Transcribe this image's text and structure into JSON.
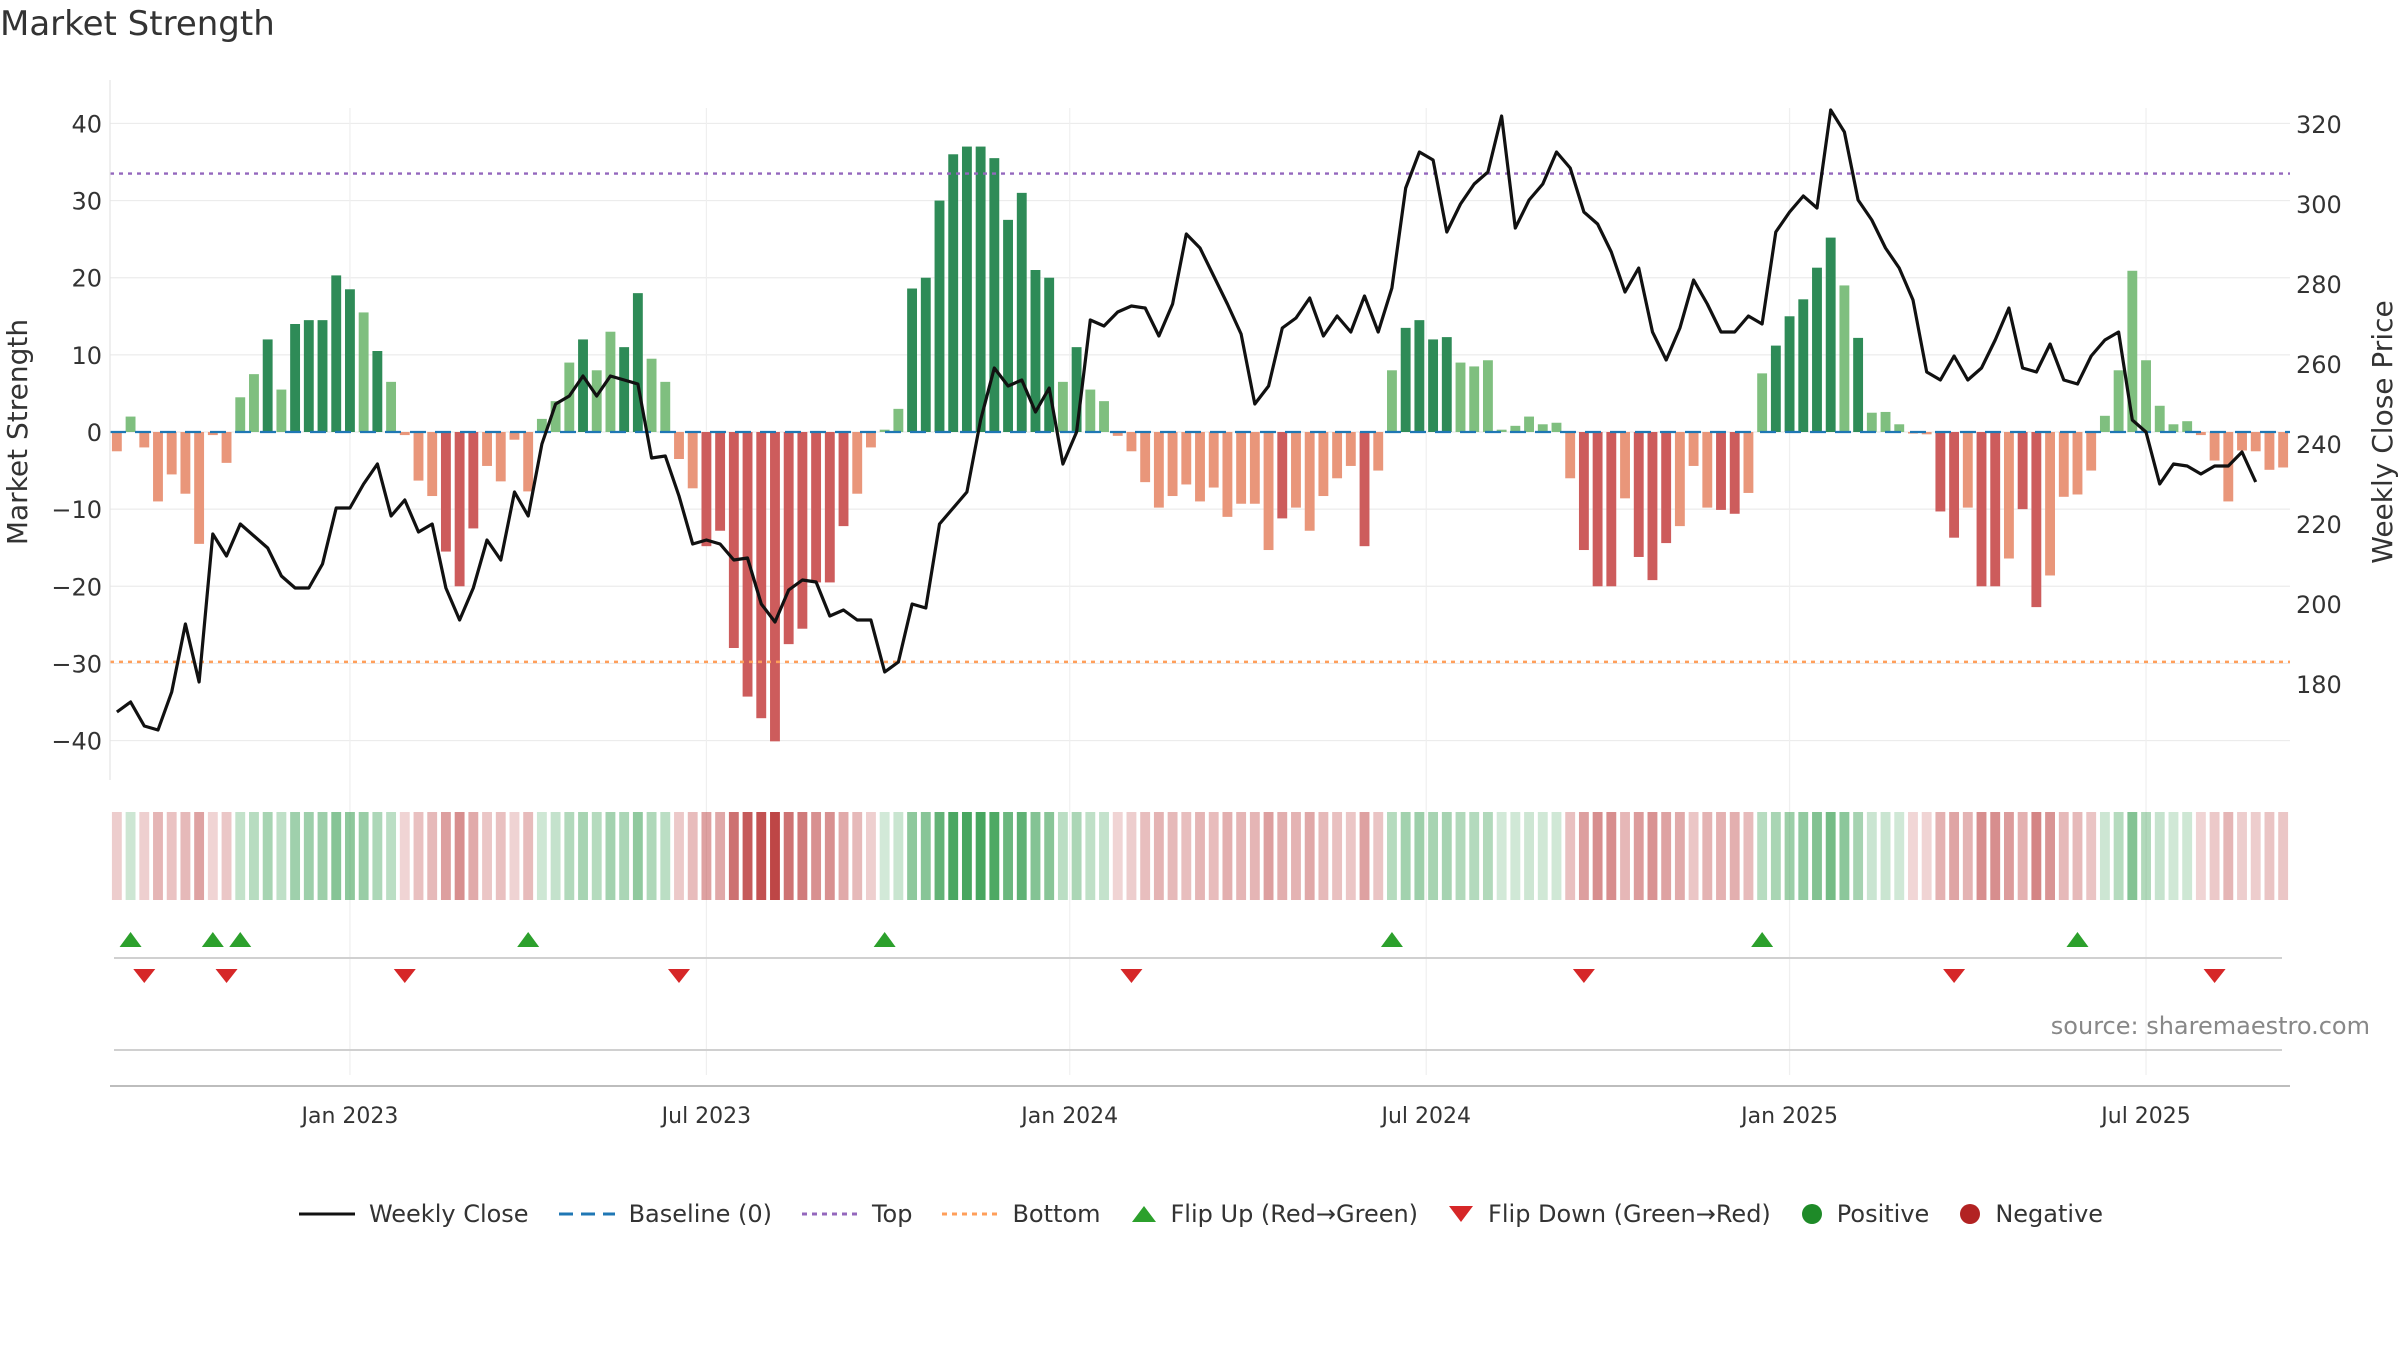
{
  "chart_data": {
    "type": "bar+line",
    "title": "Market Strength",
    "ylabel_left": "Market Strength",
    "ylabel_right": "Weekly Close Price",
    "ylim_left": [
      -42,
      42
    ],
    "ylim_right": [
      162,
      324
    ],
    "yticks_left": [
      40,
      30,
      20,
      10,
      0,
      -10,
      -20,
      -30,
      -40
    ],
    "yticks_left_labels": [
      "40",
      "30",
      "20",
      "10",
      "0",
      "−10",
      "−20",
      "−30",
      "−40"
    ],
    "yticks_right": [
      320,
      300,
      280,
      260,
      240,
      220,
      200,
      180
    ],
    "xticks": [
      {
        "week": 17.5,
        "label": "Jan 2023"
      },
      {
        "week": 43.5,
        "label": "Jul 2023"
      },
      {
        "week": 70,
        "label": "Jan 2024"
      },
      {
        "week": 96,
        "label": "Jul 2024"
      },
      {
        "week": 122.5,
        "label": "Jan 2025"
      },
      {
        "week": 148.5,
        "label": "Jul 2025"
      }
    ],
    "top_level": 33.5,
    "bottom_level": -29.8,
    "strength": [
      -2.5,
      2,
      -2,
      -9,
      -5.5,
      -8,
      -14.5,
      -0.4,
      -4,
      4.5,
      7.5,
      12,
      5.5,
      14,
      14.5,
      14.5,
      20.3,
      18.5,
      15.5,
      10.5,
      6.5,
      -0.4,
      -6.3,
      -8.3,
      -15.5,
      -20,
      -12.5,
      -4.4,
      -6.4,
      -1,
      -7.7,
      1.7,
      4,
      9,
      12,
      8,
      13,
      11,
      18,
      9.5,
      6.5,
      -3.5,
      -7.3,
      -14.8,
      -12.8,
      -28,
      -34.3,
      -37.1,
      -40.1,
      -27.5,
      -25.5,
      -19.5,
      -19.5,
      -12.2,
      -8,
      -2,
      0.3,
      3,
      18.6,
      20,
      30,
      36,
      37,
      37,
      35.5,
      27.5,
      31,
      21,
      20,
      6.5,
      11,
      5.5,
      4,
      -0.5,
      -2.5,
      -6.5,
      -9.8,
      -8.3,
      -6.8,
      -9,
      -7.2,
      -11,
      -9.3,
      -9.3,
      -15.3,
      -11.2,
      -9.8,
      -12.8,
      -8.3,
      -6,
      -4.4,
      -14.8,
      -5,
      8,
      13.5,
      14.5,
      12,
      12.3,
      9,
      8.5,
      9.3,
      0.3,
      0.8,
      2,
      1,
      1.2,
      -6,
      -15.3,
      -20,
      -20,
      -8.6,
      -16.2,
      -19.2,
      -14.4,
      -12.2,
      -4.4,
      -9.8,
      -10.1,
      -10.6,
      -7.9,
      7.6,
      11.2,
      15,
      17.2,
      21.3,
      25.2,
      19,
      12.2,
      2.5,
      2.6,
      1,
      -0.2,
      -0.3,
      -10.3,
      -13.7,
      -9.8,
      -20,
      -20,
      -16.4,
      -10,
      -22.7,
      -18.6,
      -8.4,
      -8.1,
      -5,
      2.1,
      8,
      20.9,
      9.3,
      3.4,
      1,
      1.4,
      -0.4,
      -3.7,
      -9,
      -2.4,
      -2.5,
      -4.9,
      -4.6
    ],
    "close": [
      173,
      175.5,
      169.5,
      168.5,
      178,
      195,
      180.5,
      217.5,
      212,
      220,
      217,
      214,
      207,
      204,
      204,
      210,
      224,
      224,
      230,
      235,
      222,
      226,
      218,
      220,
      204,
      196,
      204,
      216,
      211,
      228,
      222,
      240,
      250,
      252,
      257,
      252,
      257,
      256,
      255,
      236.5,
      237,
      227,
      215,
      216,
      215,
      211,
      211.5,
      200,
      195.5,
      203.5,
      206,
      205.5,
      197,
      198.5,
      196,
      196,
      183,
      185.5,
      200,
      199,
      220,
      224,
      228,
      246,
      259,
      254.5,
      256,
      248,
      254,
      235,
      243,
      271,
      269.5,
      273,
      274.5,
      274,
      267,
      275,
      292.5,
      289,
      282,
      275,
      267.5,
      250,
      254.5,
      269,
      271.5,
      276.5,
      267,
      272,
      268,
      277,
      268,
      279,
      304,
      313,
      311,
      293,
      300,
      305,
      308,
      322,
      294,
      301,
      305,
      313,
      309,
      298,
      295,
      288,
      278,
      284,
      268,
      261,
      269,
      281,
      275,
      268,
      268,
      272,
      270,
      293,
      298,
      302,
      299,
      323.5,
      318,
      301,
      296,
      289,
      284,
      276,
      258,
      256,
      262,
      256,
      259,
      266,
      274,
      259,
      258,
      265,
      256,
      255,
      262,
      266,
      268,
      246,
      243,
      230,
      235,
      234.5,
      232.5,
      234.5,
      234.5,
      238,
      230.5
    ],
    "flips_up": [
      1.5,
      7.5,
      9.5,
      30.5,
      56.5,
      93.5,
      120.5,
      143.5
    ],
    "flips_down": [
      2.5,
      8.5,
      21.5,
      41.5,
      74.5,
      107.5,
      134.5,
      153.5
    ],
    "legend": [
      {
        "key": "close",
        "label": "Weekly Close"
      },
      {
        "key": "baseline",
        "label": "Baseline (0)"
      },
      {
        "key": "top",
        "label": "Top"
      },
      {
        "key": "bottom",
        "label": "Bottom"
      },
      {
        "key": "flip_up",
        "label": "Flip Up (Red→Green)"
      },
      {
        "key": "flip_down",
        "label": "Flip Down (Green→Red)"
      },
      {
        "key": "positive",
        "label": "Positive"
      },
      {
        "key": "negative",
        "label": "Negative"
      }
    ],
    "source": "source: sharemaestro.com"
  },
  "colors": {
    "close_line": "#111111",
    "baseline": "#1f77b4",
    "top": "#9467bd",
    "bottom": "#ff9f5a",
    "flip_up": "#2ca02c",
    "flip_down": "#d62728",
    "positive": "#1e8a28",
    "negative": "#b22222",
    "green_dark": "#2e8b57",
    "green_light": "#7fbf7f",
    "red_dark": "#cd5c5c",
    "red_light": "#e9967a"
  }
}
